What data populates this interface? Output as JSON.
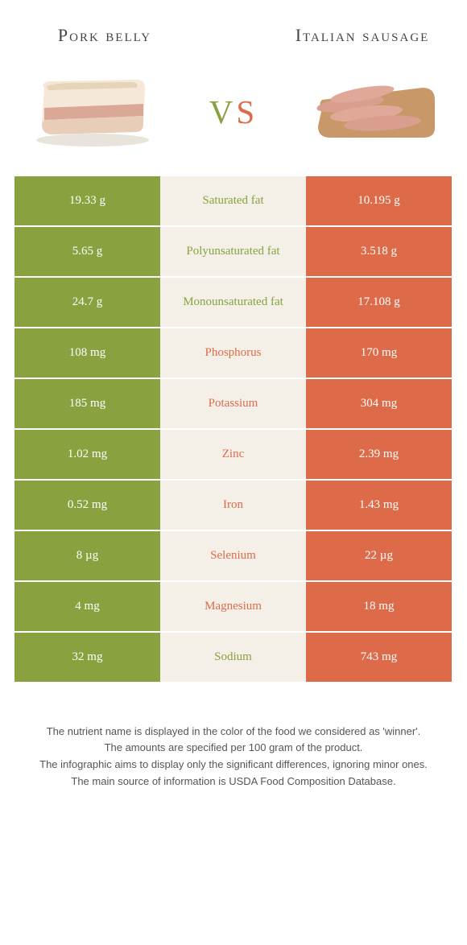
{
  "colors": {
    "green": "#89a23f",
    "orange": "#dd6b4a",
    "cream": "#f4f0e8",
    "text": "#444"
  },
  "header": {
    "left_title": "Pork belly",
    "right_title": "Italian sausage",
    "vs_v": "v",
    "vs_s": "s"
  },
  "rows": [
    {
      "left": "19.33 g",
      "label": "Saturated fat",
      "right": "10.195 g",
      "winner": "left"
    },
    {
      "left": "5.65 g",
      "label": "Polyunsaturated fat",
      "right": "3.518 g",
      "winner": "left"
    },
    {
      "left": "24.7 g",
      "label": "Monounsaturated fat",
      "right": "17.108 g",
      "winner": "left"
    },
    {
      "left": "108 mg",
      "label": "Phosphorus",
      "right": "170 mg",
      "winner": "right"
    },
    {
      "left": "185 mg",
      "label": "Potassium",
      "right": "304 mg",
      "winner": "right"
    },
    {
      "left": "1.02 mg",
      "label": "Zinc",
      "right": "2.39 mg",
      "winner": "right"
    },
    {
      "left": "0.52 mg",
      "label": "Iron",
      "right": "1.43 mg",
      "winner": "right"
    },
    {
      "left": "8 µg",
      "label": "Selenium",
      "right": "22 µg",
      "winner": "right"
    },
    {
      "left": "4 mg",
      "label": "Magnesium",
      "right": "18 mg",
      "winner": "right"
    },
    {
      "left": "32 mg",
      "label": "Sodium",
      "right": "743 mg",
      "winner": "left"
    }
  ],
  "footer": {
    "line1": "The nutrient name is displayed in the color of the food we considered as 'winner'.",
    "line2": "The amounts are specified per 100 gram of the product.",
    "line3": "The infographic aims to display only the significant differences, ignoring minor ones.",
    "line4": "The main source of information is USDA Food Composition Database."
  }
}
